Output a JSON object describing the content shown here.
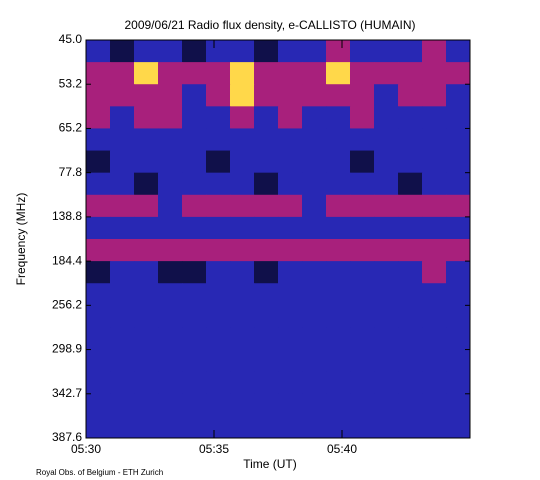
{
  "chart_data": {
    "type": "heatmap",
    "title": "2009/06/21  Radio flux density, e-CALLISTO (HUMAIN)",
    "xlabel": "Time (UT)",
    "ylabel": "Frequency (MHz)",
    "footer": "Royal Obs. of Belgium - ETH Zurich",
    "xlim": [
      "05:30",
      "05:45"
    ],
    "xticks": [
      "05:30",
      "05:35",
      "05:40"
    ],
    "ylabels": [
      "45.0",
      "53.2",
      "65.2",
      "77.8",
      "138.8",
      "184.4",
      "256.2",
      "298.9",
      "342.7",
      "387.6"
    ],
    "colors": [
      "#10104a",
      "#2828b4",
      "#a8207c",
      "#ffd84a"
    ],
    "z": [
      [
        1,
        0,
        1,
        1,
        0,
        1,
        1,
        0,
        1,
        1,
        2,
        1,
        1,
        1,
        2,
        1
      ],
      [
        2,
        2,
        3,
        2,
        2,
        2,
        3,
        2,
        2,
        2,
        3,
        2,
        2,
        2,
        2,
        2
      ],
      [
        2,
        2,
        2,
        2,
        1,
        2,
        3,
        2,
        2,
        2,
        2,
        2,
        1,
        2,
        2,
        1
      ],
      [
        2,
        1,
        2,
        2,
        1,
        1,
        2,
        1,
        2,
        1,
        1,
        2,
        1,
        1,
        1,
        1
      ],
      [
        1,
        1,
        1,
        1,
        1,
        1,
        1,
        1,
        1,
        1,
        1,
        1,
        1,
        1,
        1,
        1
      ],
      [
        0,
        1,
        1,
        1,
        1,
        0,
        1,
        1,
        1,
        1,
        1,
        0,
        1,
        1,
        1,
        1
      ],
      [
        1,
        1,
        0,
        1,
        1,
        1,
        1,
        0,
        1,
        1,
        1,
        1,
        1,
        0,
        1,
        1
      ],
      [
        2,
        2,
        2,
        1,
        2,
        2,
        2,
        2,
        2,
        1,
        2,
        2,
        2,
        2,
        2,
        2
      ],
      [
        1,
        1,
        1,
        1,
        1,
        1,
        1,
        1,
        1,
        1,
        1,
        1,
        1,
        1,
        1,
        1
      ],
      [
        2,
        2,
        2,
        2,
        2,
        2,
        2,
        2,
        2,
        2,
        2,
        2,
        2,
        2,
        2,
        2
      ],
      [
        0,
        1,
        1,
        0,
        0,
        1,
        1,
        0,
        1,
        1,
        1,
        1,
        1,
        1,
        2,
        1
      ],
      [
        1,
        1,
        1,
        1,
        1,
        1,
        1,
        1,
        1,
        1,
        1,
        1,
        1,
        1,
        1,
        1
      ],
      [
        1,
        1,
        1,
        1,
        1,
        1,
        1,
        1,
        1,
        1,
        1,
        1,
        1,
        1,
        1,
        1
      ],
      [
        1,
        1,
        1,
        1,
        1,
        1,
        1,
        1,
        1,
        1,
        1,
        1,
        1,
        1,
        1,
        1
      ],
      [
        1,
        1,
        1,
        1,
        1,
        1,
        1,
        1,
        1,
        1,
        1,
        1,
        1,
        1,
        1,
        1
      ],
      [
        1,
        1,
        1,
        1,
        1,
        1,
        1,
        1,
        1,
        1,
        1,
        1,
        1,
        1,
        1,
        1
      ],
      [
        1,
        1,
        1,
        1,
        1,
        1,
        1,
        1,
        1,
        1,
        1,
        1,
        1,
        1,
        1,
        1
      ],
      [
        1,
        1,
        1,
        1,
        1,
        1,
        1,
        1,
        1,
        1,
        1,
        1,
        1,
        1,
        1,
        1
      ]
    ]
  }
}
